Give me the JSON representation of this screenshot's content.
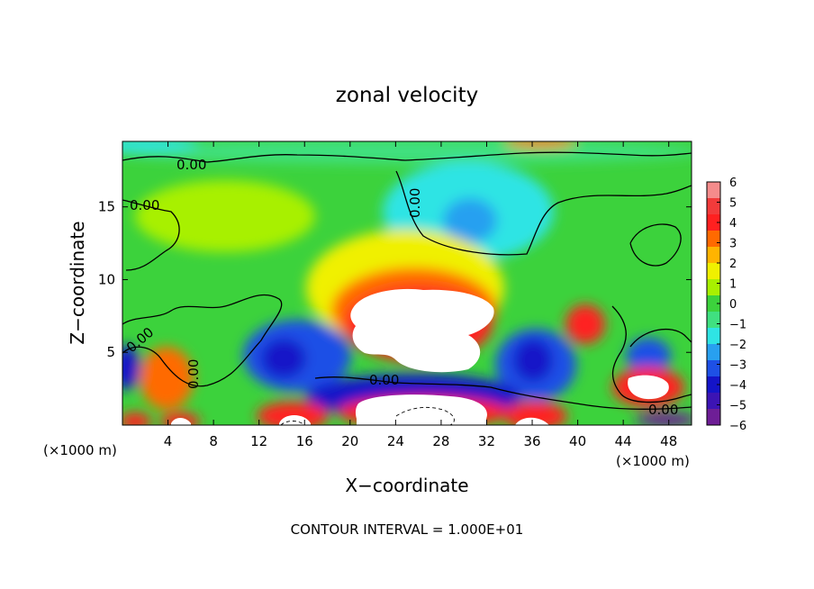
{
  "chart_data": {
    "type": "heatmap",
    "title": "zonal velocity",
    "xlabel": "X−coordinate",
    "ylabel": "Z−coordinate",
    "x_unit_label": "(×1000 m)",
    "x_unit_label_right": "(×1000 m)",
    "xlim": [
      0,
      50
    ],
    "ylim": [
      0,
      19.5
    ],
    "x_ticks": [
      4,
      8,
      12,
      16,
      20,
      24,
      28,
      32,
      36,
      40,
      44,
      48
    ],
    "y_ticks": [
      5,
      10,
      15
    ],
    "colorbar": {
      "range": [
        -6,
        6
      ],
      "tick_labels": [
        "6",
        "5",
        "4",
        "3",
        "2",
        "1",
        "0",
        "−1",
        "−2",
        "−3",
        "−4",
        "−5",
        "−6"
      ],
      "colors": [
        "#f58c8c",
        "#f23b3b",
        "#ff2020",
        "#ff6a00",
        "#ffb400",
        "#f0f000",
        "#a8f000",
        "#3cd23c",
        "#40e080",
        "#2fe4e4",
        "#28a0f0",
        "#1e50e6",
        "#1414c8",
        "#3c14b4",
        "#6e1e96"
      ]
    },
    "contour_label": "0.00",
    "annotation": "CONTOUR INTERVAL = 1.000E+01",
    "features": [
      {
        "x": 28,
        "z": 6,
        "value": 6
      },
      {
        "x": 26,
        "z": 1,
        "value": 6
      },
      {
        "x": 30,
        "z": 14.5,
        "value": -3
      },
      {
        "x": 15,
        "z": 5,
        "value": -5
      },
      {
        "x": 36,
        "z": 4.5,
        "value": -5
      },
      {
        "x": 47,
        "z": 3,
        "value": 6
      },
      {
        "x": 0.5,
        "z": 4.5,
        "value": -5
      }
    ]
  }
}
